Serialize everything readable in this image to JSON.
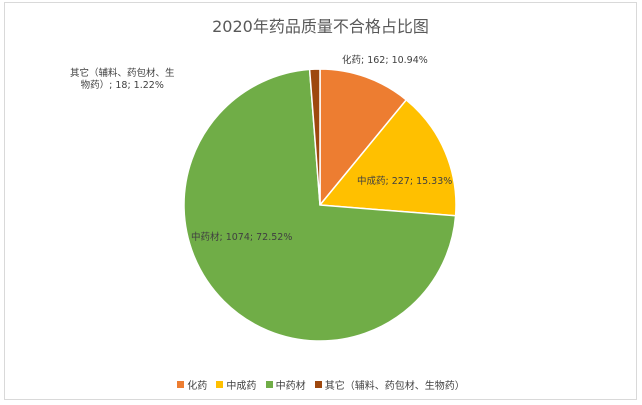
{
  "chart_data": {
    "type": "pie",
    "title": "2020年药品质量不合格占比图",
    "legend_position": "bottom",
    "slices": [
      {
        "name": "化药",
        "value": 162,
        "percent": "10.94%",
        "label": "化药; 162; 10.94%",
        "color": "#ed7d31"
      },
      {
        "name": "中成药",
        "value": 227,
        "percent": "15.33%",
        "label": "中成药; 227; 15.33%",
        "color": "#ffc000"
      },
      {
        "name": "中药材",
        "value": 1074,
        "percent": "72.52%",
        "label": "中药材; 1074; 72.52%",
        "color": "#70ad47"
      },
      {
        "name": "其它（辅料、药包材、生物药）",
        "value": 18,
        "percent": "1.22%",
        "label_lines": [
          "其它（辅料、药包材、生",
          "物药）; 18; 1.22%"
        ],
        "color": "#9e480e"
      }
    ]
  }
}
